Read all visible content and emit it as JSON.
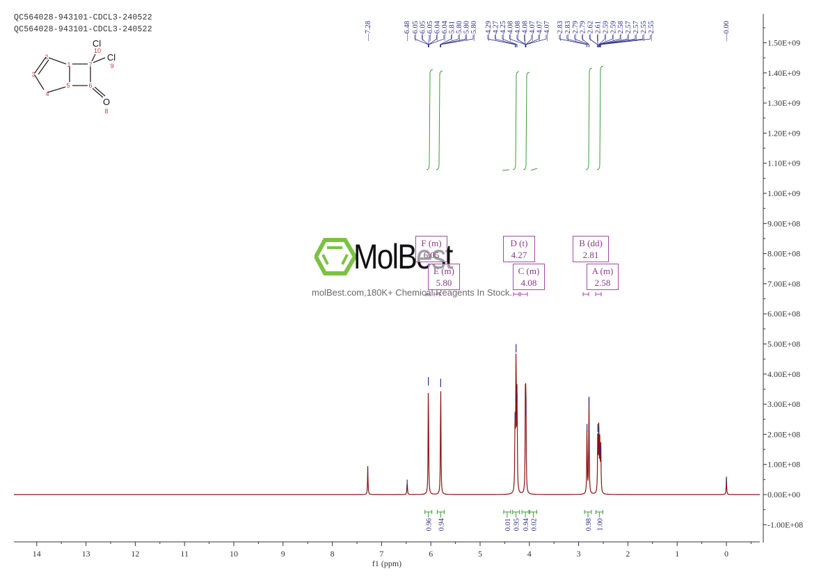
{
  "header": {
    "line1": "QC564028-943101-CDCL3-240522",
    "line2": "QC564028-943101-CDCL3-240522"
  },
  "structure": {
    "atoms": [
      {
        "id": "1",
        "label": "1"
      },
      {
        "id": "2",
        "label": "2"
      },
      {
        "id": "3",
        "label": "3"
      },
      {
        "id": "4",
        "label": "4"
      },
      {
        "id": "5",
        "label": "5"
      },
      {
        "id": "6",
        "label": "6"
      },
      {
        "id": "7",
        "label": "7"
      },
      {
        "id": "8",
        "label": "8"
      },
      {
        "id": "9",
        "label": "9"
      },
      {
        "id": "10",
        "label": "10"
      }
    ],
    "cl_label": "Cl",
    "o_label": "O"
  },
  "watermark": {
    "brand": "MolBest",
    "tagline": "molBest.com,180K+ Chemical Reagents In Stock."
  },
  "multiplets": [
    {
      "id": "F",
      "label": "F (m)",
      "shift": "6.05"
    },
    {
      "id": "E",
      "label": "E (m)",
      "shift": "5.80"
    },
    {
      "id": "D",
      "label": "D (t)",
      "shift": "4.27"
    },
    {
      "id": "C",
      "label": "C (m)",
      "shift": "4.08"
    },
    {
      "id": "B",
      "label": "B (dd)",
      "shift": "2.81"
    },
    {
      "id": "A",
      "label": "A (m)",
      "shift": "2.58"
    }
  ],
  "colors": {
    "spectrum": "#8b1010",
    "peak_labels": "#2a2a8a",
    "integral": "#3a9a3a",
    "multiplet_box": "#a04aa0",
    "axis": "#333333"
  },
  "chart_data": {
    "type": "line",
    "title": "QC564028-943101-CDCL3-240522",
    "xlabel": "f1 (ppm)",
    "ylabel": "",
    "xlim": [
      14.5,
      -0.7
    ],
    "ylim": [
      -150000000.0,
      1600000000.0
    ],
    "x_ticks": [
      "14",
      "13",
      "12",
      "11",
      "10",
      "9",
      "8",
      "7",
      "6",
      "5",
      "4",
      "3",
      "2",
      "1",
      "0"
    ],
    "y_ticks": [
      "1.50E+09",
      "1.40E+09",
      "1.30E+09",
      "1.20E+09",
      "1.10E+09",
      "1.00E+09",
      "9.00E+08",
      "8.00E+08",
      "7.00E+08",
      "6.00E+08",
      "5.00E+08",
      "4.00E+08",
      "3.00E+08",
      "2.00E+08",
      "1.00E+08",
      "0.00E+00",
      "-1.00E+08"
    ],
    "peak_labels": [
      "7.28",
      "6.48",
      "6.05",
      "6.05",
      "6.05",
      "6.04",
      "6.04",
      "5.81",
      "5.80",
      "5.80",
      "5.80",
      "4.29",
      "4.27",
      "4.25",
      "4.08",
      "4.08",
      "4.08",
      "4.07",
      "4.07",
      "4.07",
      "2.83",
      "2.83",
      "2.79",
      "2.79",
      "2.62",
      "2.61",
      "2.59",
      "2.59",
      "2.58",
      "2.57",
      "2.57",
      "2.55",
      "2.55",
      "0.00"
    ],
    "peaks": [
      {
        "ppm": 7.28,
        "height": 90000000.0
      },
      {
        "ppm": 6.48,
        "height": 45000000.0
      },
      {
        "ppm": 6.05,
        "height": 385000000.0
      },
      {
        "ppm": 5.8,
        "height": 380000000.0
      },
      {
        "ppm": 4.29,
        "height": 270000000.0
      },
      {
        "ppm": 4.27,
        "height": 495000000.0
      },
      {
        "ppm": 4.25,
        "height": 330000000.0
      },
      {
        "ppm": 4.08,
        "height": 335000000.0
      },
      {
        "ppm": 4.07,
        "height": 290000000.0
      },
      {
        "ppm": 2.83,
        "height": 230000000.0
      },
      {
        "ppm": 2.79,
        "height": 320000000.0
      },
      {
        "ppm": 2.61,
        "height": 230000000.0
      },
      {
        "ppm": 2.59,
        "height": 220000000.0
      },
      {
        "ppm": 2.57,
        "height": 165000000.0
      },
      {
        "ppm": 2.55,
        "height": 155000000.0
      },
      {
        "ppm": 0.0,
        "height": 55000000.0
      }
    ],
    "integrals": [
      {
        "ppm": 6.05,
        "value": "0.96"
      },
      {
        "ppm": 5.8,
        "value": "0.94"
      },
      {
        "ppm": 4.45,
        "value": "0.01"
      },
      {
        "ppm": 4.27,
        "value": "0.95"
      },
      {
        "ppm": 4.08,
        "value": "0.94"
      },
      {
        "ppm": 3.92,
        "value": "0.02"
      },
      {
        "ppm": 2.81,
        "value": "0.98"
      },
      {
        "ppm": 2.58,
        "value": "1.00"
      }
    ],
    "grid": false,
    "legend": "none"
  }
}
